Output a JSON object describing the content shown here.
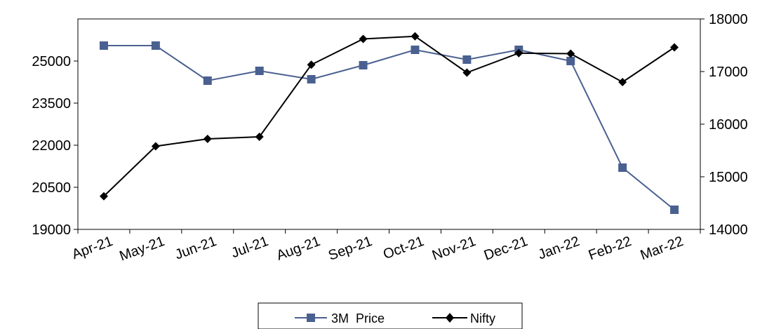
{
  "chart_data": {
    "type": "line",
    "categories": [
      "Apr-21",
      "May-21",
      "Jun-21",
      "Jul-21",
      "Aug-21",
      "Sep-21",
      "Oct-21",
      "Nov-21",
      "Dec-21",
      "Jan-22",
      "Feb-22",
      "Mar-22"
    ],
    "series": [
      {
        "name": "3M  Price",
        "axis": "left",
        "color": "#4a6090",
        "marker": "square",
        "values": [
          25550,
          25550,
          24300,
          24650,
          24350,
          24850,
          25400,
          25050,
          25400,
          25000,
          21200,
          19700
        ]
      },
      {
        "name": "Nifty",
        "axis": "right",
        "color": "#000000",
        "marker": "diamond",
        "values": [
          14630,
          15580,
          15720,
          15760,
          17130,
          17620,
          17670,
          16980,
          17350,
          17340,
          16800,
          17460
        ]
      }
    ],
    "y_left": {
      "ylim": [
        19000,
        26500
      ],
      "ticks": [
        "19000",
        "20500",
        "22000",
        "23500",
        "25000"
      ]
    },
    "y_right": {
      "ylim": [
        14000,
        18000
      ],
      "ticks": [
        "14000",
        "15000",
        "16000",
        "17000",
        "18000"
      ]
    },
    "legend": {
      "position": "bottom"
    },
    "grid": false
  }
}
